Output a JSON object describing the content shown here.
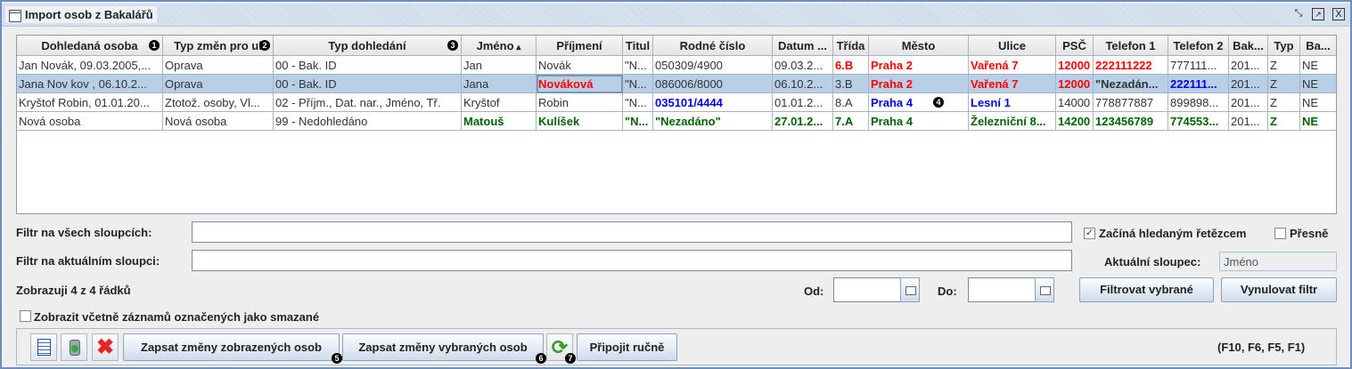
{
  "window": {
    "title": "Import osob z Bakalářů",
    "buttons": [
      "minimize-icon",
      "maximize-icon",
      "close-icon"
    ]
  },
  "table": {
    "columns": [
      {
        "label": "Dohledaná osoba",
        "badge": "1"
      },
      {
        "label": "Typ změn pro ul",
        "badge": "2"
      },
      {
        "label": "Typ dohledání",
        "badge": "3"
      },
      {
        "label": "Jméno",
        "sort": "ascending"
      },
      {
        "label": "Příjmení"
      },
      {
        "label": "Titul"
      },
      {
        "label": "Rodné číslo"
      },
      {
        "label": "Datum ..."
      },
      {
        "label": "Třída"
      },
      {
        "label": "Město"
      },
      {
        "label": "Ulice"
      },
      {
        "label": "PSČ"
      },
      {
        "label": "Telefon 1"
      },
      {
        "label": "Telefon 2"
      },
      {
        "label": "Bak..."
      },
      {
        "label": "Typ"
      },
      {
        "label": "Ba..."
      }
    ],
    "rows": [
      {
        "selected": false,
        "cells": [
          [
            "Jan Novák, 09.03.2005,...",
            "n"
          ],
          [
            "Oprava",
            "n"
          ],
          [
            "00 - Bak. ID",
            "n"
          ],
          [
            "Jan",
            "n"
          ],
          [
            "Novák",
            "n"
          ],
          [
            "\"N...",
            "n"
          ],
          [
            "050309/4900",
            "n"
          ],
          [
            "09.03.2...",
            "n"
          ],
          [
            "6.B",
            "r"
          ],
          [
            "Praha 2",
            "r"
          ],
          [
            "Vařená 7",
            "r"
          ],
          [
            "12000",
            "r"
          ],
          [
            "222111222",
            "r"
          ],
          [
            "777111...",
            "n"
          ],
          [
            "201...",
            "n"
          ],
          [
            "Z",
            "n"
          ],
          [
            "NE",
            "n"
          ]
        ]
      },
      {
        "selected": true,
        "focus_col": 4,
        "cells": [
          [
            "Jana Nov kov , 06.10.2...",
            "n"
          ],
          [
            "Oprava",
            "n"
          ],
          [
            "00 - Bak. ID",
            "n"
          ],
          [
            "Jana",
            "n"
          ],
          [
            "Nováková",
            "r"
          ],
          [
            "\"N...",
            "n"
          ],
          [
            "086006/8000",
            "n"
          ],
          [
            "06.10.2...",
            "n"
          ],
          [
            "3.B",
            "n"
          ],
          [
            "Praha 2",
            "r"
          ],
          [
            "Vařená 7",
            "r"
          ],
          [
            "12000",
            "r"
          ],
          [
            "\"Nezadán...",
            "k"
          ],
          [
            "222111...",
            "b"
          ],
          [
            "201...",
            "n"
          ],
          [
            "Z",
            "n"
          ],
          [
            "NE",
            "n"
          ]
        ]
      },
      {
        "selected": false,
        "badge": {
          "col": 9,
          "text": "4"
        },
        "cells": [
          [
            "Kryštof Robin, 01.01.20...",
            "n"
          ],
          [
            "Ztotož. osoby, Vl...",
            "n"
          ],
          [
            "02 - Příjm., Dat. nar., Jméno, Tř.",
            "n"
          ],
          [
            "Kryštof",
            "n"
          ],
          [
            "Robin",
            "n"
          ],
          [
            "\"N...",
            "n"
          ],
          [
            "035101/4444",
            "b"
          ],
          [
            "01.01.2...",
            "n"
          ],
          [
            "8.A",
            "n"
          ],
          [
            "Praha 4",
            "b"
          ],
          [
            "Lesní 1",
            "b"
          ],
          [
            "14000",
            "n"
          ],
          [
            "778877887",
            "n"
          ],
          [
            "899898...",
            "n"
          ],
          [
            "201...",
            "n"
          ],
          [
            "Z",
            "n"
          ],
          [
            "NE",
            "n"
          ]
        ]
      },
      {
        "selected": false,
        "cells": [
          [
            "Nová osoba",
            "n"
          ],
          [
            "Nová osoba",
            "n"
          ],
          [
            "99 - Nedohledáno",
            "n"
          ],
          [
            "Matouš",
            "g"
          ],
          [
            "Kulíšek",
            "g"
          ],
          [
            "\"N...",
            "g"
          ],
          [
            "\"Nezadáno\"",
            "g"
          ],
          [
            "27.01.2...",
            "g"
          ],
          [
            "7.A",
            "g"
          ],
          [
            "Praha 4",
            "g"
          ],
          [
            "Železniční 8...",
            "g"
          ],
          [
            "14200",
            "g"
          ],
          [
            "123456789",
            "g"
          ],
          [
            "774553...",
            "g"
          ],
          [
            "201...",
            "n"
          ],
          [
            "Z",
            "g"
          ],
          [
            "NE",
            "g"
          ]
        ]
      }
    ]
  },
  "filters": {
    "all_label": "Filtr na všech sloupcích:",
    "all_value": "",
    "current_label": "Filtr na aktuálním sloupci:",
    "current_value": "",
    "starts_with_label": "Začíná hledaným řetězcem",
    "starts_with_checked": true,
    "exact_label": "Přesně",
    "exact_checked": false,
    "current_col_label": "Aktuální sloupec:",
    "current_col_value": "Jméno",
    "count_text": "Zobrazuji 4 z 4 řádků",
    "from_label": "Od:",
    "to_label": "Do:",
    "filter_selected": "Filtrovat vybrané",
    "reset_filter": "Vynulovat filtr",
    "show_deleted_label": "Zobrazit včetně záznamů označených jako smazané",
    "show_deleted_checked": false
  },
  "toolbar": {
    "write_shown": "Zapsat změny zobrazených osob",
    "write_shown_badge": "5",
    "write_selected": "Zapsat změny vybraných osob",
    "write_selected_badge": "6",
    "refresh_badge": "7",
    "attach_manual": "Připojit ručně",
    "shortcuts": "(F10, F6, F5, F1)"
  },
  "colors": {
    "red": "#ff0000",
    "blue": "#0000f0",
    "green": "#006400",
    "selection": "#b8cfe5"
  }
}
